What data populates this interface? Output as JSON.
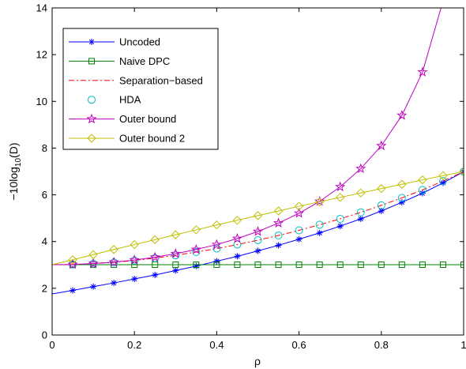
{
  "chart_data": {
    "type": "line",
    "title": "",
    "xlabel": "ρ",
    "ylabel_parts": [
      "−10log",
      "10",
      "(D)"
    ],
    "xlim": [
      0,
      1
    ],
    "ylim": [
      0,
      14
    ],
    "xticks": [
      0,
      0.2,
      0.4,
      0.6,
      0.8,
      1
    ],
    "xtick_labels": [
      "0",
      "0.2",
      "0.4",
      "0.6",
      "0.8",
      "1"
    ],
    "yticks": [
      0,
      2,
      4,
      6,
      8,
      10,
      12,
      14
    ],
    "ytick_labels": [
      "0",
      "2",
      "4",
      "6",
      "8",
      "10",
      "12",
      "14"
    ],
    "grid": false,
    "legend_position": "upper-left",
    "series": [
      {
        "name": "Uncoded",
        "color": "#0000ff",
        "marker": "asterisk",
        "line": "solid",
        "x": [
          0,
          0.05,
          0.1,
          0.15,
          0.2,
          0.25,
          0.3,
          0.35,
          0.4,
          0.45,
          0.5,
          0.55,
          0.6,
          0.65,
          0.7,
          0.75,
          0.8,
          0.85,
          0.9,
          0.95,
          1
        ],
        "y": [
          1.76,
          1.91,
          2.07,
          2.23,
          2.4,
          2.57,
          2.76,
          2.95,
          3.16,
          3.37,
          3.6,
          3.84,
          4.1,
          4.37,
          4.66,
          4.97,
          5.31,
          5.68,
          6.07,
          6.51,
          6.99
        ],
        "marker_x": [
          0.05,
          0.1,
          0.15,
          0.2,
          0.25,
          0.3,
          0.35,
          0.4,
          0.45,
          0.5,
          0.55,
          0.6,
          0.65,
          0.7,
          0.75,
          0.8,
          0.85,
          0.9,
          0.95,
          1
        ]
      },
      {
        "name": "Naive DPC",
        "color": "#008000",
        "marker": "square",
        "line": "solid",
        "x": [
          0,
          0.05,
          0.1,
          0.15,
          0.2,
          0.25,
          0.3,
          0.35,
          0.4,
          0.45,
          0.5,
          0.55,
          0.6,
          0.65,
          0.7,
          0.75,
          0.8,
          0.85,
          0.9,
          0.95,
          1
        ],
        "y": [
          3.01,
          3.01,
          3.01,
          3.01,
          3.01,
          3.01,
          3.01,
          3.01,
          3.01,
          3.01,
          3.01,
          3.01,
          3.01,
          3.01,
          3.01,
          3.01,
          3.01,
          3.01,
          3.01,
          3.01,
          3.01
        ],
        "marker_x": [
          0.05,
          0.1,
          0.15,
          0.2,
          0.25,
          0.3,
          0.35,
          0.4,
          0.45,
          0.5,
          0.55,
          0.6,
          0.65,
          0.7,
          0.75,
          0.8,
          0.85,
          0.9,
          0.95,
          1
        ]
      },
      {
        "name": "Separation−based",
        "color": "#ff0000",
        "marker": "none",
        "line": "dashdot",
        "x": [
          0,
          0.05,
          0.1,
          0.15,
          0.2,
          0.25,
          0.3,
          0.35,
          0.4,
          0.45,
          0.5,
          0.55,
          0.6,
          0.65,
          0.7,
          0.75,
          0.8,
          0.85,
          0.9,
          0.95,
          1
        ],
        "y": [
          3.01,
          3.02,
          3.06,
          3.11,
          3.19,
          3.29,
          3.41,
          3.55,
          3.7,
          3.87,
          4.06,
          4.26,
          4.48,
          4.72,
          4.97,
          5.25,
          5.55,
          5.87,
          6.21,
          6.59,
          6.99
        ],
        "marker_x": []
      },
      {
        "name": "HDA",
        "color": "#00bfbf",
        "marker": "circle",
        "line": "none",
        "x": [
          0.05,
          0.1,
          0.15,
          0.2,
          0.25,
          0.3,
          0.35,
          0.4,
          0.45,
          0.5,
          0.55,
          0.6,
          0.65,
          0.7,
          0.75,
          0.8,
          0.85,
          0.9,
          0.95,
          1
        ],
        "y": [
          3.02,
          3.06,
          3.11,
          3.19,
          3.29,
          3.41,
          3.55,
          3.7,
          3.87,
          4.06,
          4.26,
          4.48,
          4.72,
          4.97,
          5.25,
          5.55,
          5.87,
          6.21,
          6.59,
          6.99
        ],
        "marker_x": [
          0.05,
          0.1,
          0.15,
          0.2,
          0.25,
          0.3,
          0.35,
          0.4,
          0.45,
          0.5,
          0.55,
          0.6,
          0.65,
          0.7,
          0.75,
          0.8,
          0.85,
          0.9,
          0.95,
          1
        ]
      },
      {
        "name": "Outer bound",
        "color": "#bf00bf",
        "marker": "star",
        "line": "solid",
        "x": [
          0,
          0.05,
          0.1,
          0.15,
          0.2,
          0.25,
          0.3,
          0.35,
          0.4,
          0.45,
          0.5,
          0.55,
          0.6,
          0.65,
          0.7,
          0.75,
          0.8,
          0.85,
          0.9,
          0.95
        ],
        "y": [
          3.01,
          3.02,
          3.06,
          3.12,
          3.21,
          3.33,
          3.48,
          3.66,
          3.87,
          4.13,
          4.43,
          4.79,
          5.21,
          5.72,
          6.34,
          7.12,
          8.1,
          9.4,
          11.25,
          14.3
        ],
        "marker_x": [
          0.05,
          0.1,
          0.15,
          0.2,
          0.25,
          0.3,
          0.35,
          0.4,
          0.45,
          0.5,
          0.55,
          0.6,
          0.65,
          0.7,
          0.75,
          0.8,
          0.85,
          0.9,
          0.95
        ]
      },
      {
        "name": "Outer bound 2",
        "color": "#bfbf00",
        "marker": "diamond",
        "line": "solid",
        "x": [
          0,
          0.05,
          0.1,
          0.15,
          0.2,
          0.25,
          0.3,
          0.35,
          0.4,
          0.45,
          0.5,
          0.55,
          0.6,
          0.65,
          0.7,
          0.75,
          0.8,
          0.85,
          0.9,
          0.95,
          1
        ],
        "y": [
          3.01,
          3.22,
          3.44,
          3.66,
          3.87,
          4.08,
          4.29,
          4.5,
          4.71,
          4.91,
          5.11,
          5.31,
          5.51,
          5.7,
          5.89,
          6.08,
          6.27,
          6.45,
          6.64,
          6.82,
          6.99
        ],
        "marker_x": [
          0.05,
          0.1,
          0.15,
          0.2,
          0.25,
          0.3,
          0.35,
          0.4,
          0.45,
          0.5,
          0.55,
          0.6,
          0.65,
          0.7,
          0.75,
          0.8,
          0.85,
          0.9,
          0.95,
          1
        ]
      }
    ]
  }
}
